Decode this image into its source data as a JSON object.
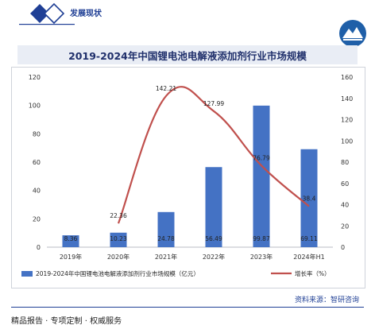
{
  "header": {
    "section_label": "发展现状",
    "logo_icon": "diamond-logo-icon",
    "emblem_icon": "mountain-emblem-icon"
  },
  "colors": {
    "bar": "#4472c4",
    "line": "#c0504d",
    "brand": "#1f3f95"
  },
  "chart_data": {
    "type": "bar",
    "title": "2019-2024年中国锂电池电解液添加剂行业市场规模",
    "categories": [
      "2019年",
      "2020年",
      "2021年",
      "2022年",
      "2023年",
      "2024年H1"
    ],
    "series": [
      {
        "name": "2019-2024年中国锂电池电解液添加剂行业市场规模（亿元）",
        "type": "bar",
        "axis": "left",
        "values": [
          8.36,
          10.23,
          24.78,
          56.49,
          99.87,
          69.11
        ]
      },
      {
        "name": "增长率（%）",
        "type": "line",
        "axis": "right",
        "values": [
          null,
          22.36,
          142.21,
          127.99,
          76.79,
          38.4
        ]
      }
    ],
    "data_labels_bar": [
      "8.36",
      "10.23",
      "24.78",
      "56.49",
      "99.87",
      "69.11"
    ],
    "data_labels_line": [
      "",
      "22.36",
      "142.21",
      "127.99",
      "76.79",
      "38.4"
    ],
    "y_left": {
      "min": 0,
      "max": 120,
      "ticks": [
        "0",
        "20",
        "40",
        "60",
        "80",
        "100",
        "120"
      ]
    },
    "y_right": {
      "min": 0,
      "max": 160,
      "ticks": [
        "0",
        "20",
        "40",
        "60",
        "80",
        "100",
        "120",
        "140",
        "160"
      ]
    },
    "legend_position": "bottom",
    "grid": false
  },
  "source": "资料来源：智研咨询",
  "footer": "精品报告 · 专项定制 · 权威服务"
}
